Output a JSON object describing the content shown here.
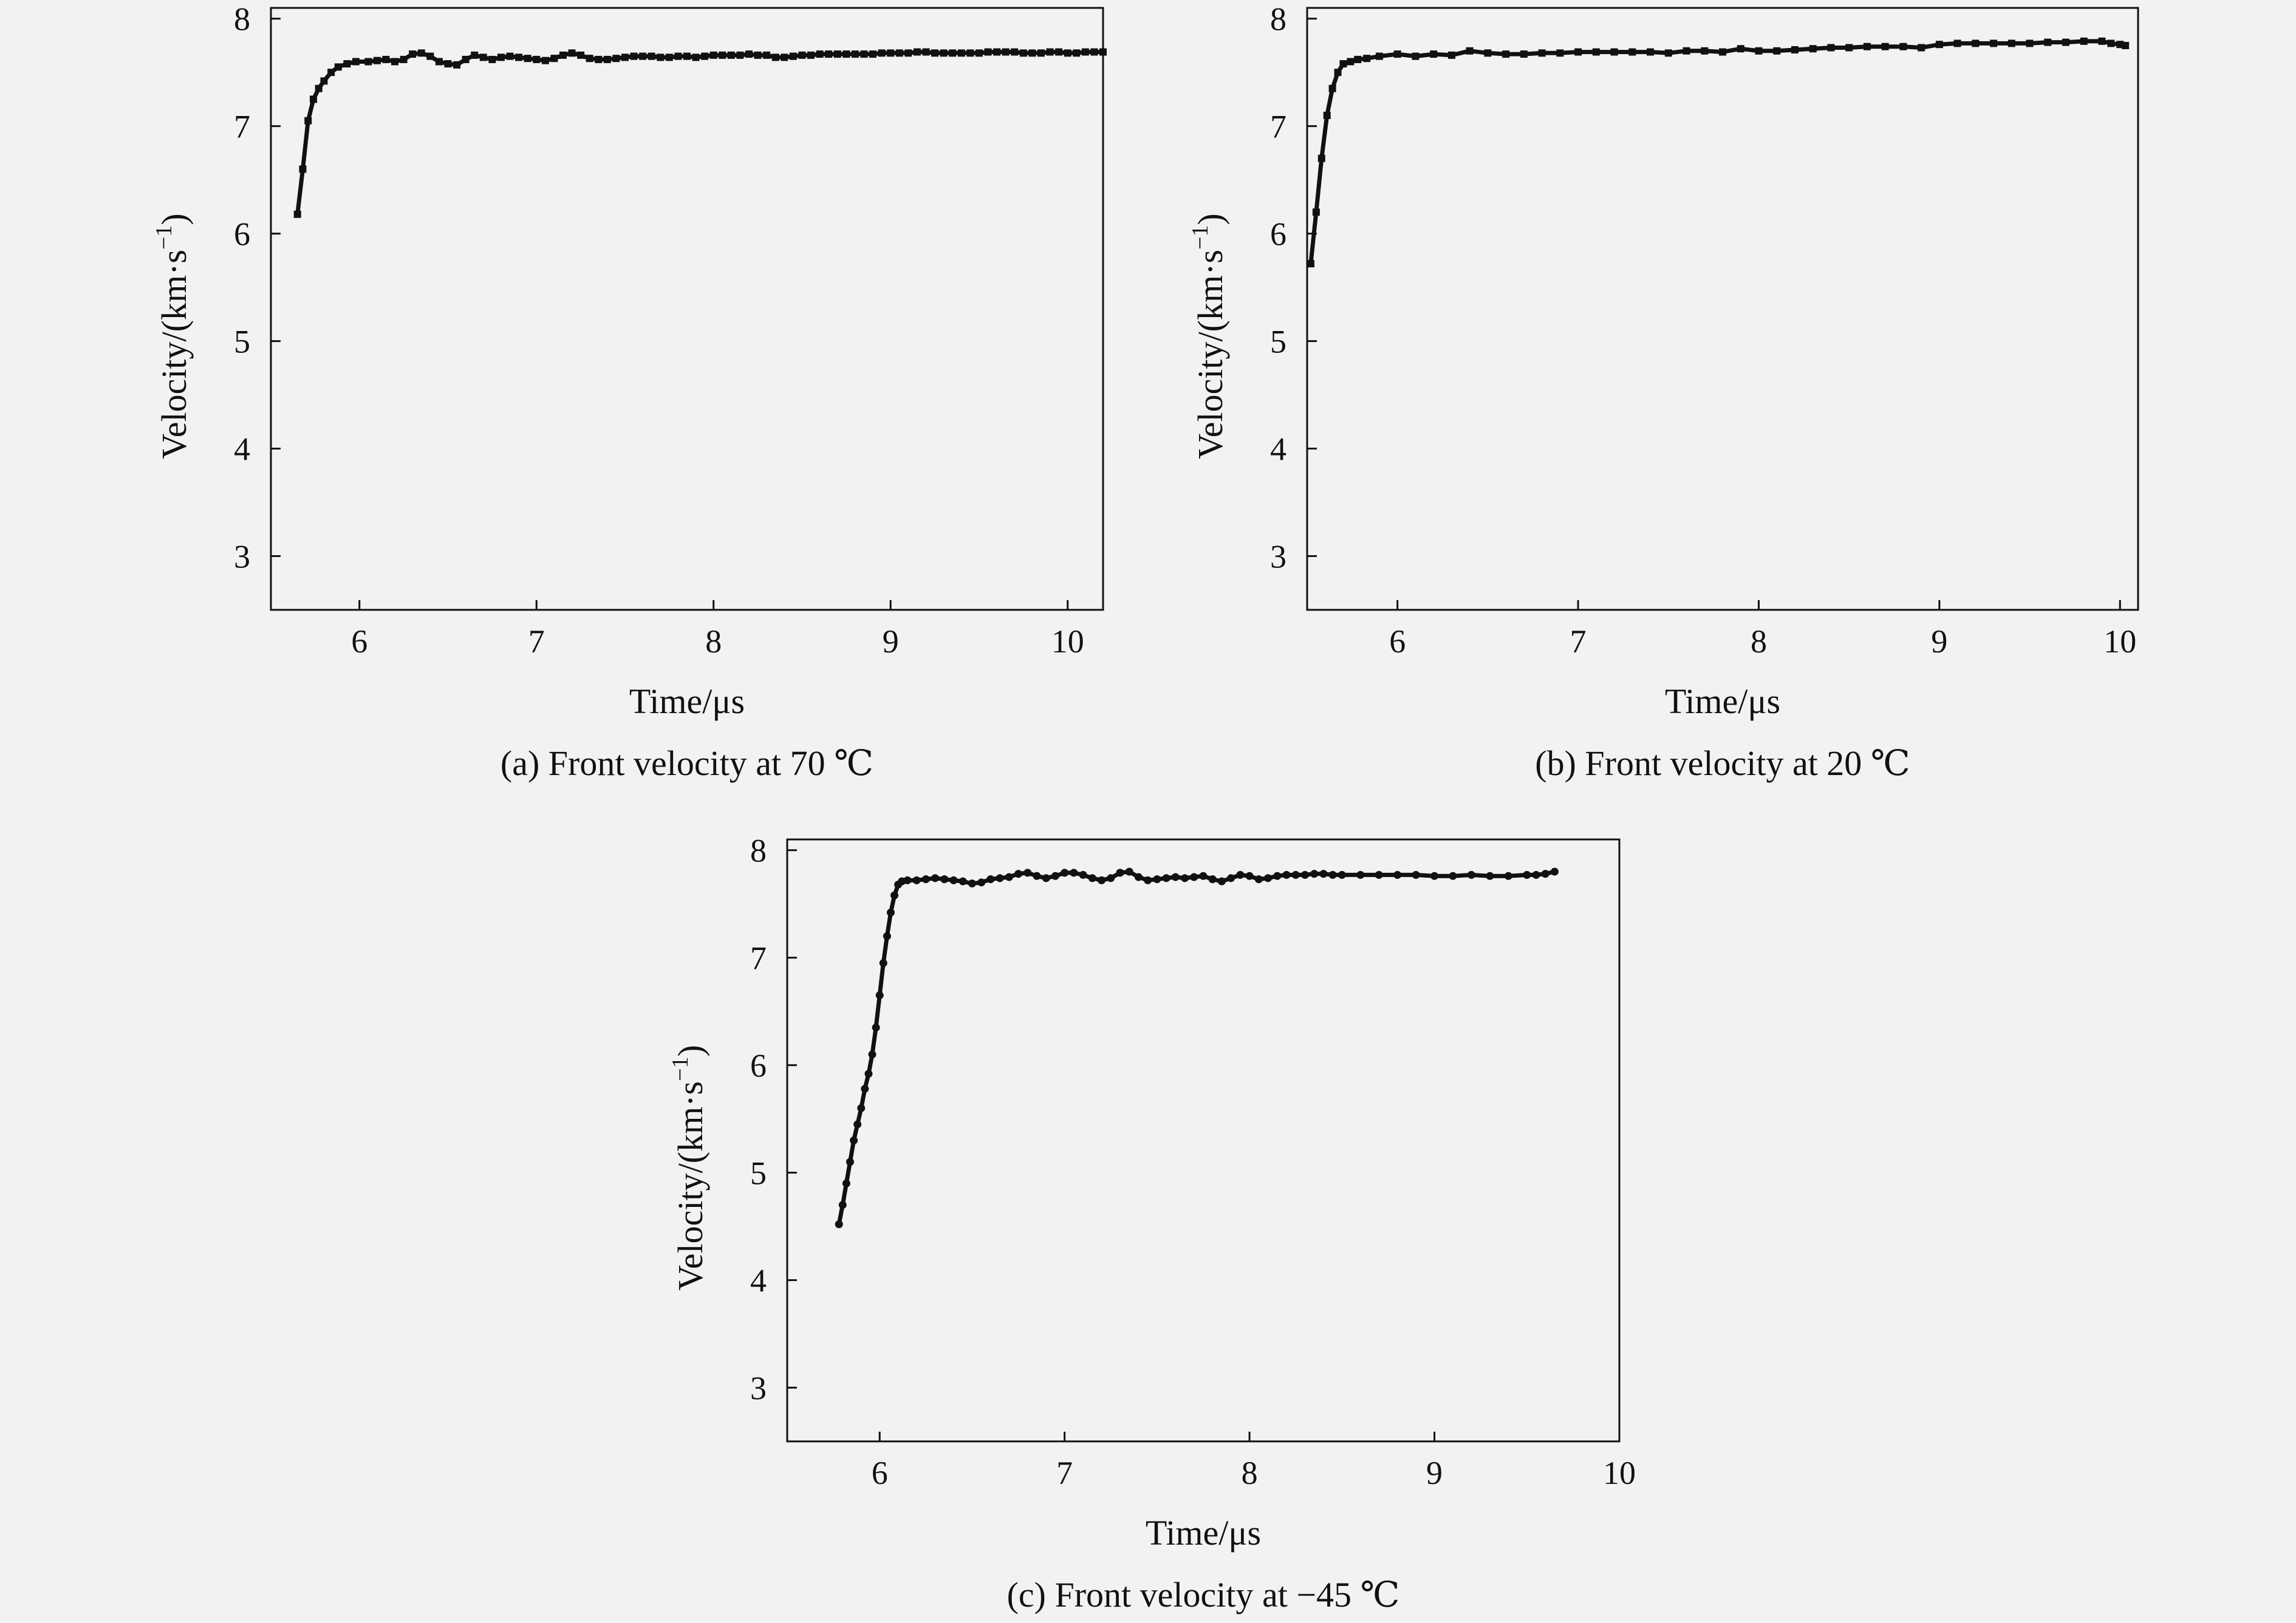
{
  "chart_data": [
    {
      "type": "line",
      "caption": "(a) Front velocity at 70 ℃",
      "xlabel": "Time/μs",
      "ylabel_main": "Velocity/(km·s",
      "ylabel_sup": "−1",
      "ylabel_close": ")",
      "xlim": [
        5.5,
        10.2
      ],
      "ylim": [
        2.5,
        8.1
      ],
      "xticks": [
        6,
        7,
        8,
        9,
        10
      ],
      "yticks": [
        3,
        4,
        5,
        6,
        7,
        8
      ],
      "marker": "square",
      "series": [
        {
          "x": [
            5.65,
            5.68,
            5.71,
            5.74,
            5.77,
            5.8,
            5.84,
            5.88,
            5.93,
            5.98,
            6.05,
            6.1,
            6.15,
            6.2,
            6.25,
            6.3,
            6.35,
            6.4,
            6.45,
            6.5,
            6.55,
            6.6,
            6.65,
            6.7,
            6.75,
            6.8,
            6.85,
            6.9,
            6.95,
            7.0,
            7.05,
            7.1,
            7.15,
            7.2,
            7.25,
            7.3,
            7.35,
            7.4,
            7.45,
            7.5,
            7.55,
            7.6,
            7.65,
            7.7,
            7.75,
            7.8,
            7.85,
            7.9,
            7.95,
            8.0,
            8.05,
            8.1,
            8.15,
            8.2,
            8.25,
            8.3,
            8.35,
            8.4,
            8.45,
            8.5,
            8.55,
            8.6,
            8.65,
            8.7,
            8.75,
            8.8,
            8.85,
            8.9,
            8.95,
            9.0,
            9.05,
            9.1,
            9.15,
            9.2,
            9.25,
            9.3,
            9.35,
            9.4,
            9.45,
            9.5,
            9.55,
            9.6,
            9.65,
            9.7,
            9.75,
            9.8,
            9.85,
            9.9,
            9.95,
            10.0,
            10.05,
            10.1,
            10.15,
            10.2
          ],
          "y": [
            6.18,
            6.6,
            7.05,
            7.25,
            7.35,
            7.42,
            7.5,
            7.55,
            7.58,
            7.6,
            7.6,
            7.61,
            7.62,
            7.6,
            7.62,
            7.67,
            7.68,
            7.65,
            7.6,
            7.58,
            7.57,
            7.62,
            7.66,
            7.64,
            7.62,
            7.64,
            7.65,
            7.64,
            7.63,
            7.62,
            7.61,
            7.63,
            7.66,
            7.68,
            7.66,
            7.63,
            7.62,
            7.62,
            7.63,
            7.64,
            7.65,
            7.65,
            7.65,
            7.64,
            7.64,
            7.65,
            7.65,
            7.64,
            7.65,
            7.66,
            7.66,
            7.66,
            7.66,
            7.67,
            7.66,
            7.66,
            7.64,
            7.64,
            7.65,
            7.66,
            7.66,
            7.67,
            7.67,
            7.67,
            7.67,
            7.67,
            7.67,
            7.67,
            7.68,
            7.68,
            7.68,
            7.68,
            7.69,
            7.69,
            7.68,
            7.68,
            7.68,
            7.68,
            7.68,
            7.68,
            7.69,
            7.69,
            7.69,
            7.69,
            7.68,
            7.68,
            7.68,
            7.69,
            7.69,
            7.68,
            7.68,
            7.69,
            7.69,
            7.69
          ]
        }
      ]
    },
    {
      "type": "line",
      "caption": "(b) Front velocity at 20 ℃",
      "xlabel": "Time/μs",
      "ylabel_main": "Velocity/(km·s",
      "ylabel_sup": "−1",
      "ylabel_close": ")",
      "xlim": [
        5.5,
        10.1
      ],
      "ylim": [
        2.5,
        8.1
      ],
      "xticks": [
        6,
        7,
        8,
        9,
        10
      ],
      "yticks": [
        3,
        4,
        5,
        6,
        7,
        8
      ],
      "marker": "square",
      "series": [
        {
          "x": [
            5.52,
            5.55,
            5.58,
            5.61,
            5.64,
            5.67,
            5.7,
            5.74,
            5.78,
            5.83,
            5.9,
            6.0,
            6.1,
            6.2,
            6.3,
            6.4,
            6.5,
            6.6,
            6.7,
            6.8,
            6.9,
            7.0,
            7.1,
            7.2,
            7.3,
            7.4,
            7.5,
            7.6,
            7.7,
            7.8,
            7.9,
            8.0,
            8.1,
            8.2,
            8.3,
            8.4,
            8.5,
            8.6,
            8.7,
            8.8,
            8.9,
            9.0,
            9.1,
            9.2,
            9.3,
            9.4,
            9.5,
            9.6,
            9.7,
            9.8,
            9.9,
            9.95,
            10.0,
            10.03
          ],
          "y": [
            5.72,
            6.2,
            6.7,
            7.1,
            7.35,
            7.5,
            7.58,
            7.6,
            7.62,
            7.63,
            7.65,
            7.67,
            7.65,
            7.67,
            7.66,
            7.7,
            7.68,
            7.67,
            7.67,
            7.68,
            7.68,
            7.69,
            7.69,
            7.69,
            7.69,
            7.69,
            7.68,
            7.7,
            7.7,
            7.69,
            7.72,
            7.7,
            7.7,
            7.71,
            7.72,
            7.73,
            7.73,
            7.74,
            7.74,
            7.74,
            7.73,
            7.76,
            7.77,
            7.77,
            7.77,
            7.77,
            7.77,
            7.78,
            7.78,
            7.79,
            7.79,
            7.77,
            7.76,
            7.75
          ]
        }
      ]
    },
    {
      "type": "line",
      "caption": "(c) Front velocity at −45 ℃",
      "xlabel": "Time/μs",
      "ylabel_main": "Velocity/(km·s",
      "ylabel_sup": "−1",
      "ylabel_close": ")",
      "xlim": [
        5.5,
        10.0
      ],
      "ylim": [
        2.5,
        8.1
      ],
      "xticks": [
        6,
        7,
        8,
        9,
        10
      ],
      "yticks": [
        3,
        4,
        5,
        6,
        7,
        8
      ],
      "marker": "circle",
      "series": [
        {
          "x": [
            5.78,
            5.8,
            5.82,
            5.84,
            5.86,
            5.88,
            5.9,
            5.92,
            5.94,
            5.96,
            5.98,
            6.0,
            6.02,
            6.04,
            6.06,
            6.08,
            6.1,
            6.12,
            6.15,
            6.2,
            6.25,
            6.3,
            6.35,
            6.4,
            6.45,
            6.5,
            6.55,
            6.6,
            6.65,
            6.7,
            6.75,
            6.8,
            6.85,
            6.9,
            6.95,
            7.0,
            7.05,
            7.1,
            7.15,
            7.2,
            7.25,
            7.3,
            7.35,
            7.4,
            7.45,
            7.5,
            7.55,
            7.6,
            7.65,
            7.7,
            7.75,
            7.8,
            7.85,
            7.9,
            7.95,
            8.0,
            8.05,
            8.1,
            8.15,
            8.2,
            8.25,
            8.3,
            8.35,
            8.4,
            8.45,
            8.5,
            8.6,
            8.7,
            8.8,
            8.9,
            9.0,
            9.1,
            9.2,
            9.3,
            9.4,
            9.5,
            9.55,
            9.6,
            9.65
          ],
          "y": [
            4.52,
            4.7,
            4.9,
            5.1,
            5.3,
            5.45,
            5.6,
            5.78,
            5.92,
            6.1,
            6.35,
            6.65,
            6.95,
            7.2,
            7.42,
            7.58,
            7.68,
            7.71,
            7.72,
            7.72,
            7.73,
            7.74,
            7.73,
            7.72,
            7.71,
            7.69,
            7.7,
            7.73,
            7.74,
            7.75,
            7.78,
            7.79,
            7.76,
            7.74,
            7.76,
            7.79,
            7.79,
            7.77,
            7.74,
            7.72,
            7.74,
            7.79,
            7.8,
            7.75,
            7.72,
            7.73,
            7.74,
            7.75,
            7.74,
            7.75,
            7.76,
            7.73,
            7.71,
            7.74,
            7.77,
            7.76,
            7.73,
            7.74,
            7.76,
            7.77,
            7.77,
            7.77,
            7.78,
            7.78,
            7.77,
            7.77,
            7.77,
            7.77,
            7.77,
            7.77,
            7.76,
            7.76,
            7.77,
            7.76,
            7.76,
            7.77,
            7.77,
            7.78,
            7.8
          ]
        }
      ]
    }
  ]
}
